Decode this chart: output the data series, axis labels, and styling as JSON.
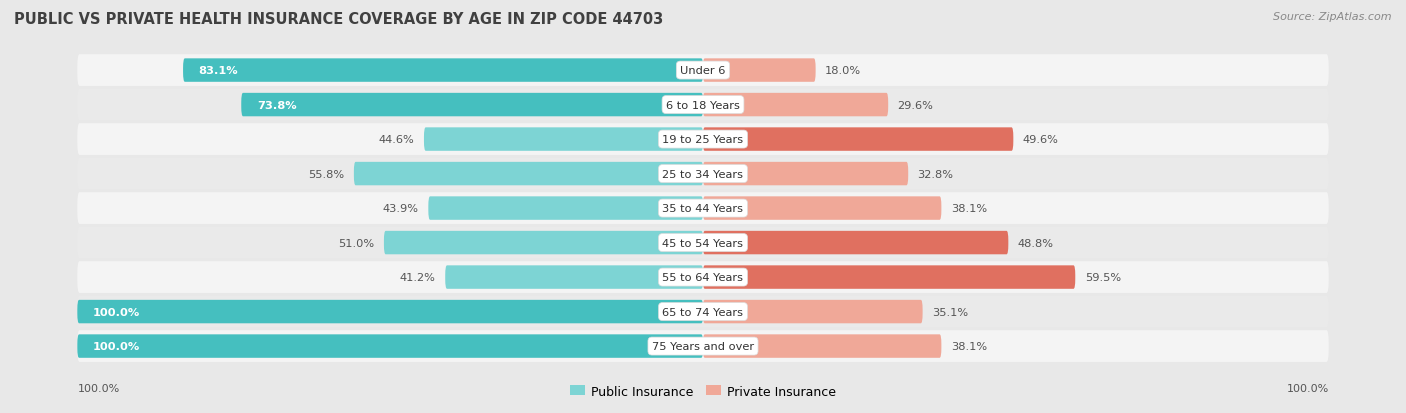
{
  "title": "PUBLIC VS PRIVATE HEALTH INSURANCE COVERAGE BY AGE IN ZIP CODE 44703",
  "source": "Source: ZipAtlas.com",
  "categories": [
    "Under 6",
    "6 to 18 Years",
    "19 to 25 Years",
    "25 to 34 Years",
    "35 to 44 Years",
    "45 to 54 Years",
    "55 to 64 Years",
    "65 to 74 Years",
    "75 Years and over"
  ],
  "public_values": [
    83.1,
    73.8,
    44.6,
    55.8,
    43.9,
    51.0,
    41.2,
    100.0,
    100.0
  ],
  "private_values": [
    18.0,
    29.6,
    49.6,
    32.8,
    38.1,
    48.8,
    59.5,
    35.1,
    38.1
  ],
  "public_color_hi": "#45BFBF",
  "public_color_lo": "#7DD4D4",
  "private_color_hi": "#E07060",
  "private_color_lo": "#F0A898",
  "bg_color": "#E8E8E8",
  "row_color_light": "#F4F4F4",
  "row_color_dark": "#EAEAEA",
  "title_color": "#404040",
  "source_color": "#888888",
  "label_dark_color": "#555555",
  "label_white_color": "#FFFFFF",
  "max_value": 100.0,
  "x_axis_label": "100.0%",
  "legend_public": "Public Insurance",
  "legend_private": "Private Insurance",
  "high_threshold": 60.0
}
